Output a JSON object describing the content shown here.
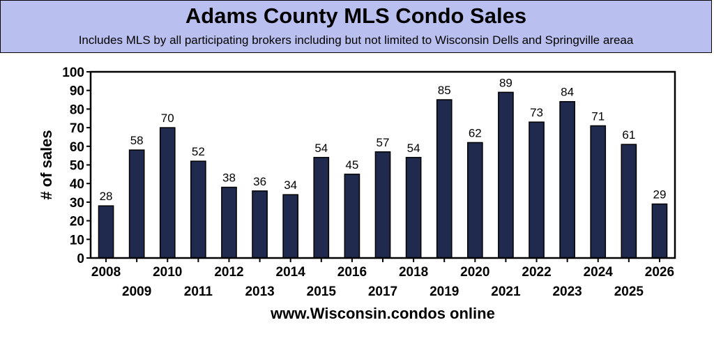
{
  "chart_data": {
    "type": "bar",
    "title": "Adams County MLS Condo Sales",
    "subtitle": "Includes MLS by all participating brokers including but not limited to Wisconsin Dells and Springville areaa",
    "xlabel": "www.Wisconsin.condos online",
    "ylabel": "# of sales",
    "ylim": [
      0,
      100
    ],
    "yticks": [
      0,
      10,
      20,
      30,
      40,
      50,
      60,
      70,
      80,
      90,
      100
    ],
    "categories": [
      "2008",
      "2009",
      "2010",
      "2011",
      "2012",
      "2013",
      "2014",
      "2015",
      "2016",
      "2017",
      "2018",
      "2019",
      "2020",
      "2021",
      "2022",
      "2023",
      "2024",
      "2025",
      "2026"
    ],
    "values": [
      28,
      58,
      70,
      52,
      38,
      36,
      34,
      54,
      45,
      57,
      54,
      85,
      62,
      89,
      73,
      84,
      71,
      61,
      29
    ],
    "bar_color": "#1f2a4e",
    "banner_color": "#b9c0f0",
    "grid": false
  }
}
